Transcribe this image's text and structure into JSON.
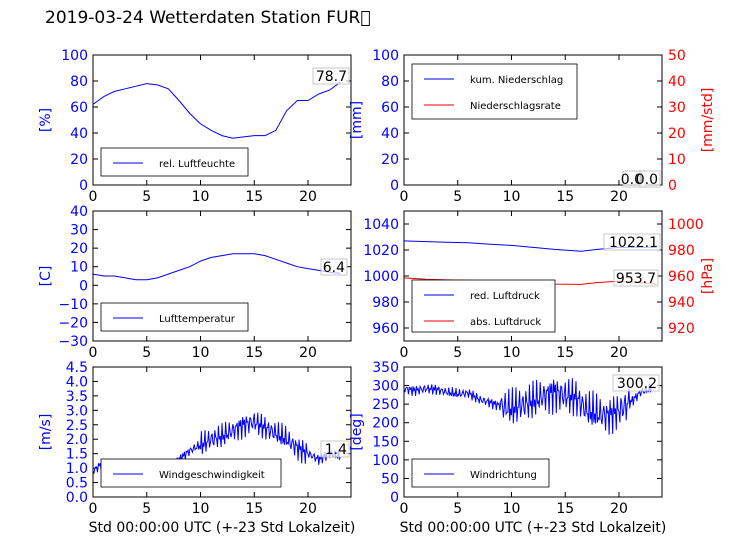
{
  "title": "2019-03-24 Wetterdaten Station FUR\u0000",
  "chart_data": [
    {
      "type": "line",
      "panel": "humidity",
      "ylabel": "[%]",
      "ylim": [
        0,
        100
      ],
      "yticks": [
        "0",
        "20",
        "40",
        "60",
        "80",
        "100"
      ],
      "xlim": [
        0,
        24
      ],
      "xticks": [
        "0",
        "5",
        "10",
        "15",
        "20"
      ],
      "legend": [
        "rel. Luftfeuchte"
      ],
      "current_value_label": "78.7",
      "series": [
        {
          "name": "rel. Luftfeuchte",
          "color": "#0000ff",
          "x": [
            0,
            1,
            2,
            3,
            4,
            5,
            6,
            7,
            8,
            9,
            10,
            11,
            12,
            13,
            14,
            15,
            16,
            17,
            18,
            19,
            20,
            21,
            22,
            23
          ],
          "values": [
            62,
            68,
            72,
            74,
            76,
            78,
            77,
            74,
            65,
            55,
            47,
            42,
            38,
            36,
            37,
            38,
            38,
            42,
            57,
            65,
            65,
            70,
            73,
            79
          ]
        }
      ]
    },
    {
      "type": "line",
      "panel": "precipitation",
      "ylabel": "[mm]",
      "ylabel_right": "[mm/std]",
      "ylim": [
        0,
        100
      ],
      "ylim_right": [
        0,
        50
      ],
      "yticks": [
        "0",
        "20",
        "40",
        "60",
        "80",
        "100"
      ],
      "yticks_right": [
        "0",
        "10",
        "20",
        "30",
        "40",
        "50"
      ],
      "xlim": [
        0,
        24
      ],
      "xticks": [
        "0",
        "5",
        "10",
        "15",
        "20"
      ],
      "legend": [
        "kum. Niederschlag",
        "Niederschlagsrate"
      ],
      "current_value_labels": [
        "0.0",
        "0.0"
      ],
      "series": [
        {
          "name": "kum. Niederschlag",
          "color": "#0000ff",
          "x": [
            0,
            23.5
          ],
          "values": [
            0,
            0
          ]
        },
        {
          "name": "Niederschlagsrate",
          "color": "#ff0000",
          "axis": "right",
          "x": [
            0,
            23.5
          ],
          "values": [
            0,
            0
          ]
        }
      ]
    },
    {
      "type": "line",
      "panel": "temperature",
      "ylabel": "[C]",
      "ylim": [
        -30,
        40
      ],
      "yticks": [
        "−30",
        "−20",
        "−10",
        "0",
        "10",
        "20",
        "30",
        "40"
      ],
      "xlim": [
        0,
        24
      ],
      "xticks": [
        "0",
        "5",
        "10",
        "15",
        "20"
      ],
      "legend": [
        "Lufttemperatur"
      ],
      "current_value_label": "6.4",
      "series": [
        {
          "name": "Lufttemperatur",
          "color": "#0000ff",
          "x": [
            0,
            1,
            2,
            3,
            4,
            5,
            6,
            7,
            8,
            9,
            10,
            11,
            12,
            13,
            14,
            15,
            16,
            17,
            18,
            19,
            20,
            21,
            22,
            23
          ],
          "values": [
            6,
            5,
            5,
            4,
            3,
            3,
            4,
            6,
            8,
            10,
            13,
            15,
            16,
            17,
            17,
            17,
            16,
            14,
            12,
            10,
            9,
            8,
            7,
            6.4
          ]
        }
      ]
    },
    {
      "type": "line",
      "panel": "pressure",
      "ylabel_right": "[hPa]",
      "ylim": [
        950,
        1050
      ],
      "ylim_right": [
        910,
        1010
      ],
      "yticks": [
        "960",
        "980",
        "1000",
        "1020",
        "1040"
      ],
      "yticks_right": [
        "920",
        "940",
        "960",
        "980",
        "1000"
      ],
      "xlim": [
        0,
        24
      ],
      "xticks": [
        "0",
        "5",
        "10",
        "15",
        "20"
      ],
      "legend": [
        "red. Luftdruck",
        "abs. Luftdruck"
      ],
      "current_value_labels": [
        "1022.1",
        "953.7"
      ],
      "series": [
        {
          "name": "red. Luftdruck",
          "color": "#0000ff",
          "x": [
            0,
            2,
            4,
            6,
            8,
            10,
            12,
            14,
            16.5,
            18,
            20,
            22,
            23.5
          ],
          "values": [
            1027,
            1026.5,
            1026,
            1025.5,
            1024.5,
            1023.5,
            1022,
            1020.5,
            1019,
            1020.5,
            1022,
            1022,
            1022.1
          ]
        },
        {
          "name": "abs. Luftdruck",
          "color": "#ff0000",
          "axis": "right",
          "x": [
            0,
            2,
            4,
            6,
            8,
            10,
            12,
            14,
            16.5,
            18,
            20,
            22,
            23.5
          ],
          "values": [
            958.5,
            957.5,
            957,
            956.8,
            956,
            955,
            954.5,
            953.8,
            953.5,
            955,
            956,
            954.8,
            953.7
          ]
        }
      ]
    },
    {
      "type": "line",
      "panel": "wind_speed",
      "ylabel": "[m/s]",
      "ylim": [
        0,
        4.5
      ],
      "yticks": [
        "0.0",
        "0.5",
        "1.0",
        "1.5",
        "2.0",
        "2.5",
        "3.0",
        "3.5",
        "4.0",
        "4.5"
      ],
      "xlim": [
        0,
        24
      ],
      "xticks": [
        "0",
        "5",
        "10",
        "15",
        "20"
      ],
      "xlabel": "Std 00:00:00 UTC (+-23 Std Lokalzeit)",
      "legend": [
        "Windgeschwindigkeit"
      ],
      "current_value_label": "1.4",
      "series": [
        {
          "name": "Windgeschwindigkeit",
          "color": "#0000ff",
          "x": [
            0,
            1,
            2,
            3,
            4,
            5,
            6,
            7,
            8,
            9,
            10,
            11,
            12,
            13,
            14,
            15,
            16,
            17,
            18,
            19,
            20,
            21,
            22,
            23
          ],
          "values": [
            0.9,
            1.2,
            1.1,
            1.0,
            0.8,
            0.5,
            0.7,
            1.0,
            1.3,
            1.6,
            1.8,
            2.0,
            2.1,
            2.3,
            2.5,
            2.6,
            2.4,
            2.2,
            2.0,
            1.7,
            1.5,
            1.3,
            1.5,
            1.4
          ]
        }
      ]
    },
    {
      "type": "line",
      "panel": "wind_direction",
      "ylabel": "[deg]",
      "ylim": [
        0,
        360
      ],
      "yticks": [
        "0",
        "50",
        "100",
        "150",
        "200",
        "250",
        "300",
        "350"
      ],
      "xlim": [
        0,
        24
      ],
      "xticks": [
        "0",
        "5",
        "10",
        "15",
        "20"
      ],
      "xlabel": "Std 00:00:00 UTC (+-23 Std Lokalzeit)",
      "legend": [
        "Windrichtung"
      ],
      "current_value_label": "300.2",
      "series": [
        {
          "name": "Windrichtung",
          "color": "#0000ff",
          "x": [
            0,
            1,
            2,
            3,
            4,
            5,
            6,
            7,
            8,
            9,
            10,
            11,
            12,
            13,
            14,
            15,
            16,
            17,
            18,
            19,
            20,
            21,
            22,
            23
          ],
          "values": [
            300,
            295,
            300,
            298,
            290,
            285,
            288,
            270,
            262,
            252,
            245,
            255,
            265,
            280,
            290,
            280,
            275,
            240,
            230,
            225,
            240,
            260,
            290,
            300.2
          ]
        }
      ]
    }
  ]
}
